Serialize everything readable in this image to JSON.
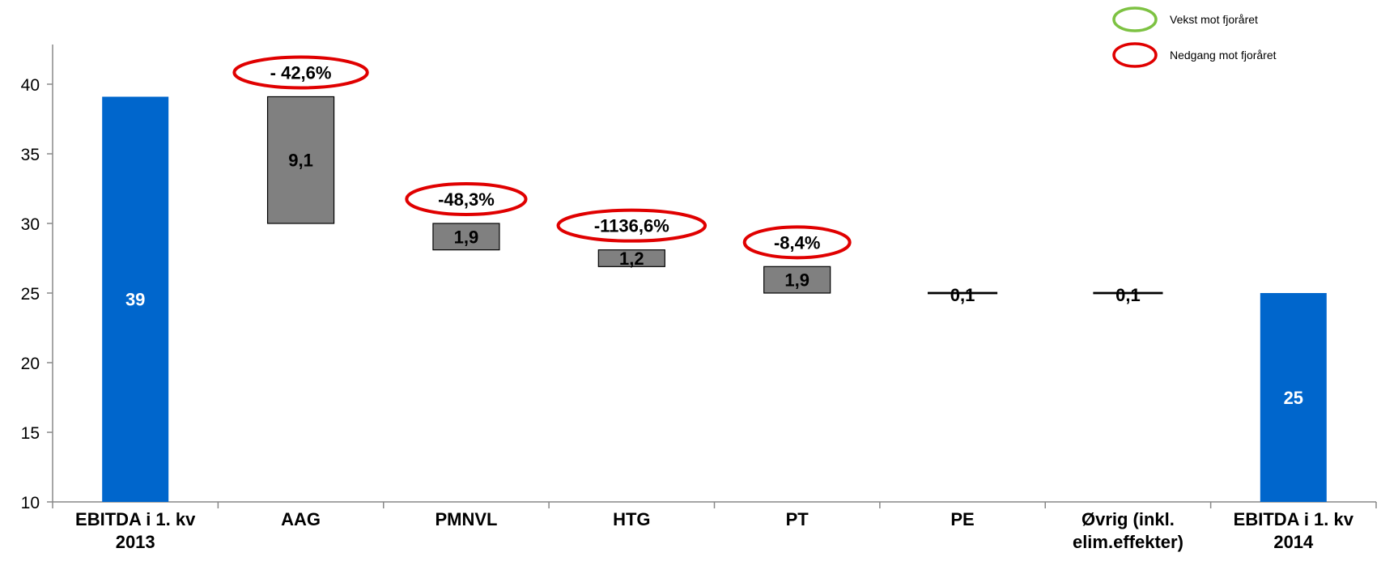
{
  "chart_data": {
    "type": "bar",
    "subtype": "waterfall",
    "title": "",
    "xlabel": "",
    "ylabel": "",
    "ylim": [
      10,
      43
    ],
    "yticks": [
      10,
      15,
      20,
      25,
      30,
      35,
      40
    ],
    "grid": false,
    "legend_position": "top-right",
    "colors": {
      "total": "#0066cc",
      "change": "#808080",
      "decline": "#e00000",
      "growth": "#7dc242"
    },
    "legend": [
      {
        "label": "Vekst mot fjoråret",
        "color": "#7dc242"
      },
      {
        "label": "Nedgang mot fjoråret",
        "color": "#e00000"
      }
    ],
    "bars": [
      {
        "category": [
          "EBITDA i 1. kv",
          "2013"
        ],
        "kind": "total",
        "bottom": 10,
        "top": 39.1,
        "label": "39",
        "pct": ""
      },
      {
        "category": [
          "AAG"
        ],
        "kind": "change",
        "bottom": 30.0,
        "top": 39.1,
        "label": "9,1",
        "pct": "- 42,6%"
      },
      {
        "category": [
          "PMNVL"
        ],
        "kind": "change",
        "bottom": 28.1,
        "top": 30.0,
        "label": "1,9",
        "pct": "-48,3%"
      },
      {
        "category": [
          "HTG"
        ],
        "kind": "change",
        "bottom": 26.9,
        "top": 28.1,
        "label": "1,2",
        "pct": "-1136,6%"
      },
      {
        "category": [
          "PT"
        ],
        "kind": "change",
        "bottom": 25.0,
        "top": 26.9,
        "label": "1,9",
        "pct": "-8,4%"
      },
      {
        "category": [
          "PE"
        ],
        "kind": "change",
        "bottom": 25.0,
        "top": 25.1,
        "label": "0,1",
        "pct": ""
      },
      {
        "category": [
          "Øvrig (inkl.",
          "elim.effekter)"
        ],
        "kind": "change",
        "bottom": 25.0,
        "top": 25.1,
        "label": "0,1",
        "pct": ""
      },
      {
        "category": [
          "EBITDA i 1. kv",
          "2014"
        ],
        "kind": "total",
        "bottom": 10,
        "top": 25.0,
        "label": "25",
        "pct": ""
      }
    ]
  }
}
